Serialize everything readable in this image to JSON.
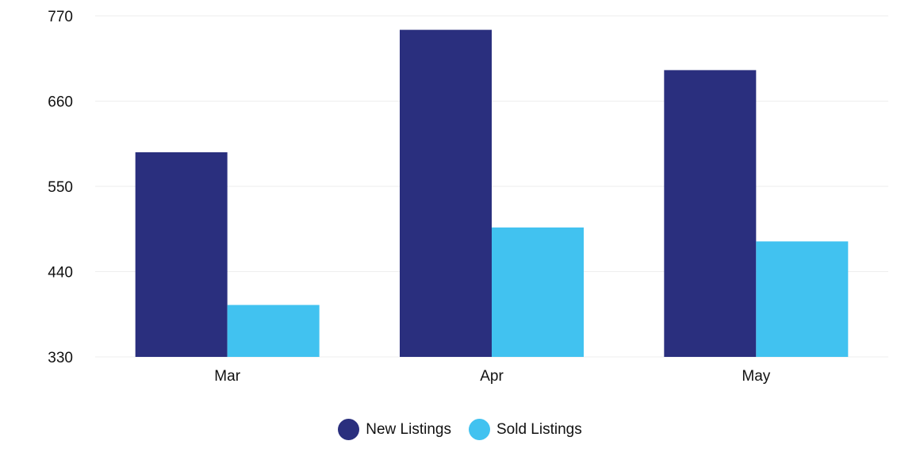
{
  "chart_data": {
    "type": "bar",
    "categories": [
      "Mar",
      "Apr",
      "May"
    ],
    "series": [
      {
        "name": "New Listings",
        "color": "#2a2f7e",
        "values": [
          594,
          752,
          700
        ]
      },
      {
        "name": "Sold Listings",
        "color": "#41c2f0",
        "values": [
          397,
          497,
          479
        ]
      }
    ],
    "ylim": [
      330,
      770
    ],
    "yticks": [
      770,
      660,
      550,
      440,
      330
    ],
    "grid": true,
    "legend_position": "bottom-center",
    "title": "",
    "xlabel": "",
    "ylabel": ""
  }
}
